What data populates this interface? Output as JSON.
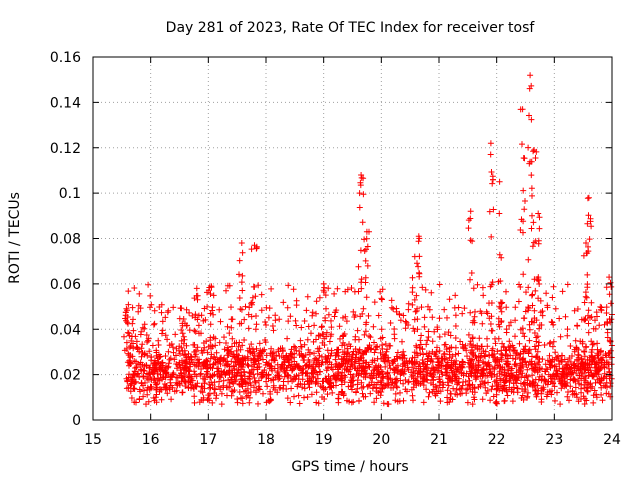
{
  "chart_data": {
    "type": "scatter",
    "title": "Day 281 of 2023, Rate Of TEC Index for receiver tosf",
    "xlabel": "GPS time / hours",
    "ylabel": "ROTI / TECUs",
    "xlim": [
      15,
      24
    ],
    "ylim": [
      0,
      0.16
    ],
    "xticks": [
      "15",
      "16",
      "17",
      "18",
      "19",
      "20",
      "21",
      "22",
      "23",
      "24"
    ],
    "yticks": [
      "0",
      "0.02",
      "0.04",
      "0.06",
      "0.08",
      "0.1",
      "0.12",
      "0.14",
      "0.16"
    ],
    "grid": true,
    "marker": "+",
    "color": "#ff0000",
    "series": [
      {
        "name": "ROTI",
        "x_start": 15.58,
        "x_end": 24.0,
        "baseline_range": [
          0.007,
          0.05
        ],
        "typical_value": 0.022,
        "peaks": [
          {
            "x": 15.58,
            "y": 0.049
          },
          {
            "x": 16.8,
            "y": 0.058
          },
          {
            "x": 17.05,
            "y": 0.059
          },
          {
            "x": 17.58,
            "y": 0.078
          },
          {
            "x": 17.8,
            "y": 0.077
          },
          {
            "x": 19.0,
            "y": 0.06
          },
          {
            "x": 19.65,
            "y": 0.108
          },
          {
            "x": 19.75,
            "y": 0.083
          },
          {
            "x": 20.65,
            "y": 0.081
          },
          {
            "x": 20.58,
            "y": 0.072
          },
          {
            "x": 21.55,
            "y": 0.092
          },
          {
            "x": 21.9,
            "y": 0.122
          },
          {
            "x": 22.05,
            "y": 0.105
          },
          {
            "x": 22.45,
            "y": 0.137
          },
          {
            "x": 22.58,
            "y": 0.152
          },
          {
            "x": 22.65,
            "y": 0.119
          },
          {
            "x": 22.72,
            "y": 0.091
          },
          {
            "x": 23.6,
            "y": 0.098
          },
          {
            "x": 23.55,
            "y": 0.078
          },
          {
            "x": 23.95,
            "y": 0.063
          }
        ]
      }
    ]
  }
}
